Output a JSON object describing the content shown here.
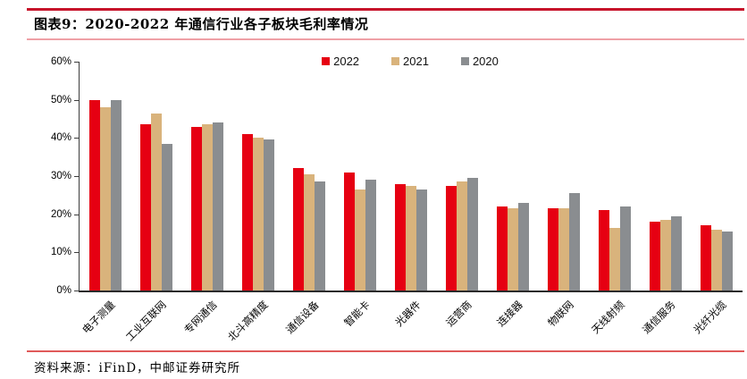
{
  "header": {
    "title": "图表9：2020-2022 年通信行业各子板块毛利率情况"
  },
  "footer": {
    "source": "资料来源：iFinD，中邮证券研究所"
  },
  "colors": {
    "accent_red": "#c7142b",
    "divider_pink": "#efa0a6",
    "footer_line": "#e05a5a",
    "axis": "#3c3c3c",
    "bar_2022": "#e60012",
    "bar_2021": "#d9b37c",
    "bar_2020": "#8a8d90"
  },
  "chart_data": {
    "type": "bar",
    "title": "",
    "xlabel": "",
    "ylabel": "",
    "ylim": [
      0,
      60
    ],
    "yticks": [
      "0%",
      "10%",
      "20%",
      "30%",
      "40%",
      "50%",
      "60%"
    ],
    "grid": false,
    "legend_position": "top-center",
    "categories": [
      "电子测量",
      "工业互联网",
      "专网通信",
      "北斗高精度",
      "通信设备",
      "智能卡",
      "光器件",
      "运营商",
      "连接器",
      "物联网",
      "天线射频",
      "通信服务",
      "光纤光缆"
    ],
    "series": [
      {
        "name": "2022",
        "color": "#e60012",
        "values": [
          50,
          43.5,
          43,
          41,
          32,
          31,
          28,
          27.5,
          22,
          21.5,
          21,
          18,
          17
        ]
      },
      {
        "name": "2021",
        "color": "#d9b37c",
        "values": [
          48,
          46.5,
          43.5,
          40,
          30.5,
          26.5,
          27.5,
          28.5,
          21.5,
          21.5,
          16.5,
          18.5,
          16
        ]
      },
      {
        "name": "2020",
        "color": "#8a8d90",
        "values": [
          50,
          38.5,
          44,
          39.5,
          28.5,
          29,
          26.5,
          29.5,
          23,
          25.5,
          22,
          19.5,
          15.5
        ]
      }
    ]
  }
}
